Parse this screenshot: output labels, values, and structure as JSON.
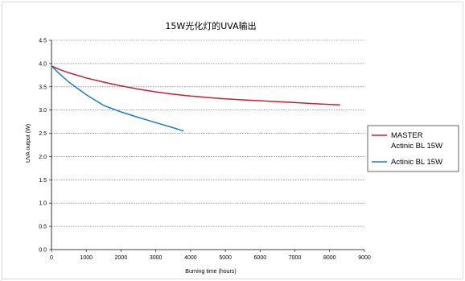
{
  "chart_data": {
    "type": "line",
    "title": "15W光化灯的UVA输出",
    "xlabel": "Burning time (hours)",
    "ylabel": "UVA output (W)",
    "xlim": [
      0,
      9000
    ],
    "ylim": [
      0,
      4.5
    ],
    "x_ticks": [
      "0",
      "1000",
      "2000",
      "3000",
      "4000",
      "5000",
      "6000",
      "7000",
      "8000",
      "9000"
    ],
    "y_ticks": [
      "0.0",
      "0.5",
      "1.0",
      "1.5",
      "2.0",
      "2.5",
      "3.0",
      "3.5",
      "4.0",
      "4.5"
    ],
    "grid": "horizontal dashed",
    "legend_position": "right",
    "series": [
      {
        "name": "MASTER Actinic BL 15W",
        "legend_lines": [
          "MASTER",
          "Actinic BL 15W"
        ],
        "color": "#c8202f",
        "x": [
          0,
          200,
          500,
          1000,
          1500,
          2000,
          2500,
          3000,
          3500,
          4000,
          4500,
          5000,
          5500,
          6000,
          6500,
          7000,
          7500,
          8000,
          8300
        ],
        "y": [
          3.95,
          3.88,
          3.8,
          3.69,
          3.6,
          3.52,
          3.45,
          3.39,
          3.34,
          3.3,
          3.27,
          3.24,
          3.22,
          3.2,
          3.18,
          3.16,
          3.14,
          3.12,
          3.11
        ]
      },
      {
        "name": "Actinic BL 15W",
        "legend_lines": [
          "Actinic BL 15W"
        ],
        "color": "#1f7bc0",
        "x": [
          0,
          200,
          500,
          1000,
          1500,
          2000,
          2500,
          3000,
          3500,
          3800
        ],
        "y": [
          3.95,
          3.8,
          3.6,
          3.33,
          3.1,
          2.96,
          2.84,
          2.73,
          2.62,
          2.55
        ]
      }
    ]
  }
}
